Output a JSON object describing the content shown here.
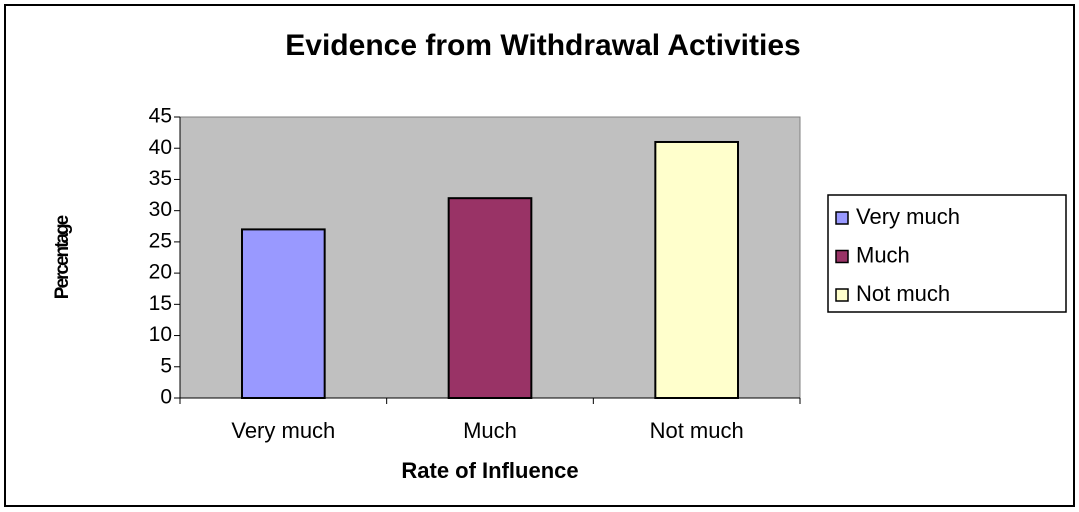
{
  "chart_data": {
    "type": "bar",
    "title": "Evidence from Withdrawal Activities",
    "x_label": "Rate of Influence",
    "y_label": "Percentage",
    "categories": [
      "Very much",
      "Much",
      "Not much"
    ],
    "values": [
      27,
      32,
      41
    ],
    "colors": [
      "#9999ff",
      "#993366",
      "#ffffcc"
    ],
    "ylim": [
      0,
      45
    ],
    "yticks": [
      0,
      5,
      10,
      15,
      20,
      25,
      30,
      35,
      40,
      45
    ],
    "grid": false,
    "legend": "right"
  }
}
